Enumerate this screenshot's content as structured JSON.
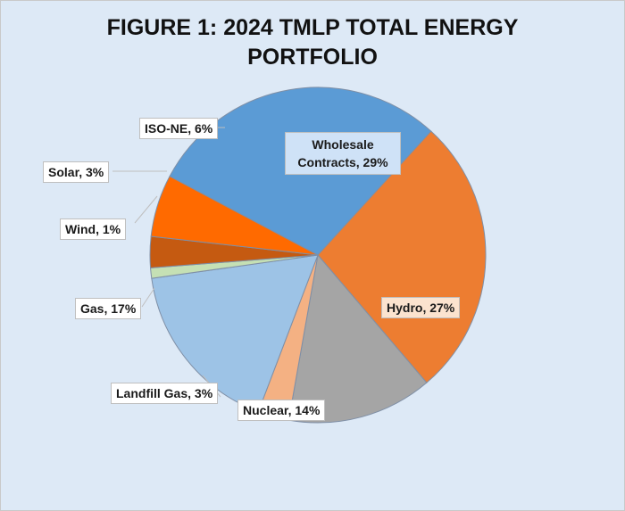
{
  "chart_data": {
    "type": "pie",
    "title_lines": [
      "FIGURE 1: 2024 TMLP TOTAL ENERGY",
      "PORTFOLIO"
    ],
    "slices": [
      {
        "name": "Wholesale Contracts",
        "label": "Wholesale Contracts, 29%",
        "value": 29,
        "color": "#5b9bd5"
      },
      {
        "name": "Hydro",
        "label": "Hydro, 27%",
        "value": 27,
        "color": "#ed7d31"
      },
      {
        "name": "Nuclear",
        "label": "Nuclear, 14%",
        "value": 14,
        "color": "#a5a5a5"
      },
      {
        "name": "Landfill Gas",
        "label": "Landfill Gas, 3%",
        "value": 3,
        "color": "#f4b183"
      },
      {
        "name": "Gas",
        "label": "Gas, 17%",
        "value": 17,
        "color": "#9dc3e6"
      },
      {
        "name": "Wind",
        "label": "Wind, 1%",
        "value": 1,
        "color": "#c5e0b4"
      },
      {
        "name": "Solar",
        "label": "Solar, 3%",
        "value": 3,
        "color": "#c55a11"
      },
      {
        "name": "ISO-NE",
        "label": "ISO-NE, 6%",
        "value": 6,
        "color": "#ff6a00"
      }
    ]
  }
}
